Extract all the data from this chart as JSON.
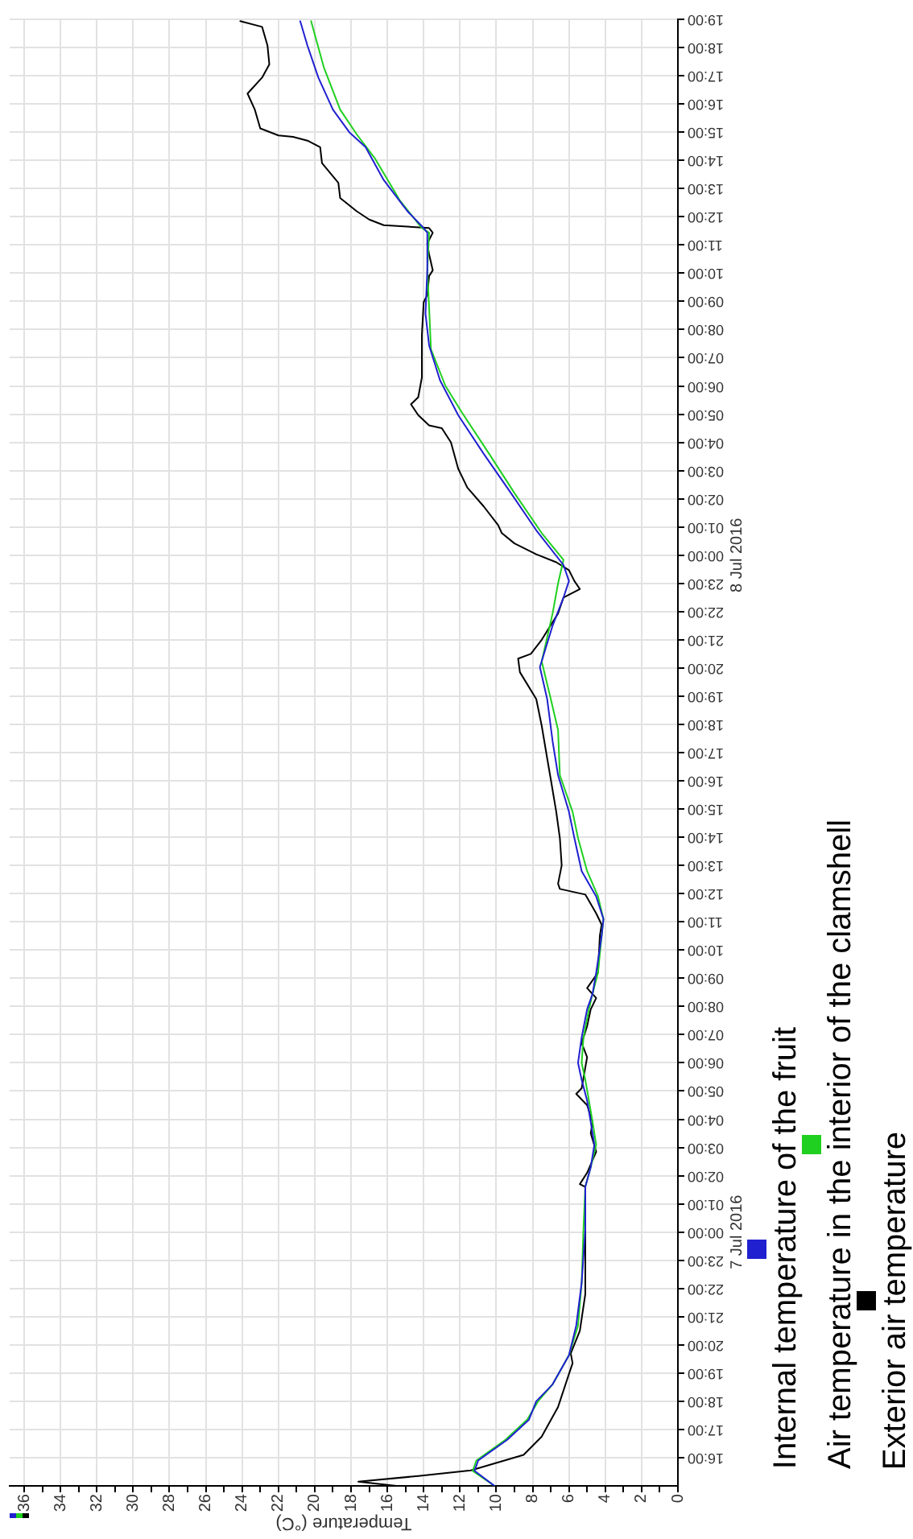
{
  "chart_data": {
    "type": "line",
    "orientation": "horizontal",
    "xlabel": "Temperature (°C)",
    "xlim": [
      36.8,
      0
    ],
    "xticks": [
      36,
      {
        "value": 35,
        "label": null
      },
      34,
      {
        "value": 33,
        "label": null
      },
      32,
      {
        "value": 31,
        "label": null
      },
      30,
      {
        "value": 29,
        "label": null
      },
      28,
      {
        "value": 27,
        "label": null
      },
      26,
      {
        "value": 25,
        "label": null
      },
      24,
      {
        "value": 23,
        "label": null
      },
      22,
      {
        "value": 21,
        "label": null
      },
      20,
      {
        "value": 19,
        "label": null
      },
      18,
      {
        "value": 17,
        "label": null
      },
      16,
      {
        "value": 15,
        "label": null
      },
      14,
      {
        "value": 13,
        "label": null
      },
      12,
      {
        "value": 11,
        "label": null
      },
      10,
      {
        "value": 9,
        "label": null
      },
      8,
      {
        "value": 7,
        "label": null
      },
      6,
      {
        "value": 5,
        "label": null
      },
      4,
      {
        "value": 3,
        "label": null
      },
      2,
      {
        "value": 1,
        "label": null
      },
      0
    ],
    "ylim": [
      "2016-07-06T15:00",
      "2016-07-08T19:00"
    ],
    "yticks": [
      {
        "value": "2016-07-06T16:00",
        "label": "16:00"
      },
      {
        "value": "2016-07-06T17:00",
        "label": "17:00"
      },
      {
        "value": "2016-07-06T18:00",
        "label": "18:00"
      },
      {
        "value": "2016-07-06T19:00",
        "label": "19:00"
      },
      {
        "value": "2016-07-06T20:00",
        "label": "20:00"
      },
      {
        "value": "2016-07-06T21:00",
        "label": "21:00"
      },
      {
        "value": "2016-07-06T22:00",
        "label": "22:00"
      },
      {
        "value": "2016-07-06T23:00",
        "label": "23:00"
      },
      {
        "value": "2016-07-07T00:00",
        "label": "00:00"
      },
      {
        "value": "2016-07-07T01:00",
        "label": "01:00"
      },
      {
        "value": "2016-07-07T02:00",
        "label": "02:00"
      },
      {
        "value": "2016-07-07T03:00",
        "label": "03:00"
      },
      {
        "value": "2016-07-07T04:00",
        "label": "04:00"
      },
      {
        "value": "2016-07-07T05:00",
        "label": "05:00"
      },
      {
        "value": "2016-07-07T06:00",
        "label": "06:00"
      },
      {
        "value": "2016-07-07T07:00",
        "label": "07:00"
      },
      {
        "value": "2016-07-07T08:00",
        "label": "08:00"
      },
      {
        "value": "2016-07-07T09:00",
        "label": "09:00"
      },
      {
        "value": "2016-07-07T10:00",
        "label": "10:00"
      },
      {
        "value": "2016-07-07T11:00",
        "label": "11:00"
      },
      {
        "value": "2016-07-07T12:00",
        "label": "12:00"
      },
      {
        "value": "2016-07-07T13:00",
        "label": "13:00"
      },
      {
        "value": "2016-07-07T14:00",
        "label": "14:00"
      },
      {
        "value": "2016-07-07T15:00",
        "label": "15:00"
      },
      {
        "value": "2016-07-07T16:00",
        "label": "16:00"
      },
      {
        "value": "2016-07-07T17:00",
        "label": "17:00"
      },
      {
        "value": "2016-07-07T18:00",
        "label": "18:00"
      },
      {
        "value": "2016-07-07T19:00",
        "label": "19:00"
      },
      {
        "value": "2016-07-07T20:00",
        "label": "20:00"
      },
      {
        "value": "2016-07-07T21:00",
        "label": "21:00"
      },
      {
        "value": "2016-07-07T22:00",
        "label": "22:00"
      },
      {
        "value": "2016-07-07T23:00",
        "label": "23:00"
      },
      {
        "value": "2016-07-08T00:00",
        "label": "00:00"
      },
      {
        "value": "2016-07-08T01:00",
        "label": "01:00"
      },
      {
        "value": "2016-07-08T02:00",
        "label": "02:00"
      },
      {
        "value": "2016-07-08T03:00",
        "label": "03:00"
      },
      {
        "value": "2016-07-08T04:00",
        "label": "04:00"
      },
      {
        "value": "2016-07-08T05:00",
        "label": "05:00"
      },
      {
        "value": "2016-07-08T06:00",
        "label": "06:00"
      },
      {
        "value": "2016-07-08T07:00",
        "label": "07:00"
      },
      {
        "value": "2016-07-08T08:00",
        "label": "08:00"
      },
      {
        "value": "2016-07-08T09:00",
        "label": "09:00"
      },
      {
        "value": "2016-07-08T10:00",
        "label": "10:00"
      },
      {
        "value": "2016-07-08T11:00",
        "label": "11:00"
      },
      {
        "value": "2016-07-08T12:00",
        "label": "12:00"
      },
      {
        "value": "2016-07-08T13:00",
        "label": "13:00"
      },
      {
        "value": "2016-07-08T14:00",
        "label": "14:00"
      },
      {
        "value": "2016-07-08T15:00",
        "label": "15:00"
      },
      {
        "value": "2016-07-08T16:00",
        "label": "16:00"
      },
      {
        "value": "2016-07-08T17:00",
        "label": "17:00"
      },
      {
        "value": "2016-07-08T18:00",
        "label": "18:00"
      },
      {
        "value": "2016-07-08T19:00",
        "label": "19:00"
      }
    ],
    "annotations": [
      "7 Jul 2016",
      "8 Jul 2016"
    ],
    "grid": true,
    "legend": "right",
    "series": [
      {
        "name": "Internal temperature of the fruit",
        "color": "#2020d0",
        "x": [
          "2016-07-06T15:00",
          "2016-07-06T15:32",
          "2016-07-06T15:54",
          "2016-07-06T16:38",
          "2016-07-06T17:21",
          "2016-07-06T18:00",
          "2016-07-06T18:36",
          "2016-07-06T19:38",
          "2016-07-06T20:41",
          "2016-07-06T22:12",
          "2016-07-07T00:06",
          "2016-07-07T01:36",
          "2016-07-07T02:18",
          "2016-07-07T03:06",
          "2016-07-07T03:54",
          "2016-07-07T04:40",
          "2016-07-07T05:24",
          "2016-07-07T06:00",
          "2016-07-07T06:54",
          "2016-07-07T07:54",
          "2016-07-07T08:27",
          "2016-07-07T09:12",
          "2016-07-07T10:30",
          "2016-07-07T11:06",
          "2016-07-07T11:54",
          "2016-07-07T12:48",
          "2016-07-07T13:58",
          "2016-07-07T14:54",
          "2016-07-07T16:12",
          "2016-07-07T17:24",
          "2016-07-07T18:54",
          "2016-07-07T20:02",
          "2016-07-07T21:30",
          "2016-07-07T22:30",
          "2016-07-07T23:05",
          "2016-07-07T23:39",
          "2016-07-08T00:53",
          "2016-07-08T02:18",
          "2016-07-08T03:36",
          "2016-07-08T04:58",
          "2016-07-08T06:12",
          "2016-07-08T07:26",
          "2016-07-08T08:34",
          "2016-07-08T10:06",
          "2016-07-08T11:26",
          "2016-07-08T11:36",
          "2016-07-08T12:12",
          "2016-07-08T13:18",
          "2016-07-08T14:28",
          "2016-07-08T15:00",
          "2016-07-08T15:48",
          "2016-07-08T16:56",
          "2016-07-08T18:04",
          "2016-07-08T18:56"
        ],
        "values": [
          10.1,
          11.2,
          11.0,
          9.4,
          8.2,
          7.8,
          6.9,
          6.0,
          5.6,
          5.3,
          5.1,
          5.1,
          4.8,
          4.6,
          4.8,
          5.0,
          5.3,
          5.5,
          5.3,
          5.0,
          4.7,
          4.5,
          4.2,
          4.1,
          4.5,
          5.3,
          5.7,
          6.0,
          6.6,
          6.9,
          7.2,
          7.6,
          6.9,
          6.3,
          6.0,
          6.3,
          7.8,
          9.3,
          10.7,
          12.1,
          13.1,
          13.7,
          13.9,
          13.8,
          13.8,
          14.0,
          14.9,
          16.2,
          17.2,
          18.1,
          19.0,
          19.8,
          20.4,
          20.8
        ]
      },
      {
        "name": "Air temperature in the interior of the clamshell",
        "color": "#20d020",
        "x": [
          "2016-07-06T15:00",
          "2016-07-06T15:32",
          "2016-07-06T15:54",
          "2016-07-06T16:38",
          "2016-07-06T17:21",
          "2016-07-06T18:00",
          "2016-07-06T18:36",
          "2016-07-06T19:38",
          "2016-07-06T20:41",
          "2016-07-06T22:12",
          "2016-07-07T00:06",
          "2016-07-07T01:36",
          "2016-07-07T02:18",
          "2016-07-07T03:06",
          "2016-07-07T03:54",
          "2016-07-07T04:40",
          "2016-07-07T05:24",
          "2016-07-07T06:00",
          "2016-07-07T06:54",
          "2016-07-07T07:54",
          "2016-07-07T08:27",
          "2016-07-07T09:12",
          "2016-07-07T10:30",
          "2016-07-07T11:06",
          "2016-07-07T11:54",
          "2016-07-07T12:48",
          "2016-07-07T13:58",
          "2016-07-07T14:54",
          "2016-07-07T16:12",
          "2016-07-07T17:48",
          "2016-07-07T18:54",
          "2016-07-07T20:14",
          "2016-07-07T21:56",
          "2016-07-07T23:00",
          "2016-07-07T23:50",
          "2016-07-08T00:47",
          "2016-07-08T02:12",
          "2016-07-08T03:36",
          "2016-07-08T05:04",
          "2016-07-08T06:00",
          "2016-07-08T07:18",
          "2016-07-08T08:46",
          "2016-07-08T10:06",
          "2016-07-08T11:26",
          "2016-07-08T11:36",
          "2016-07-08T12:34",
          "2016-07-08T14:05",
          "2016-07-08T14:56",
          "2016-07-08T15:48",
          "2016-07-08T17:18",
          "2016-07-08T18:56"
        ],
        "values": [
          10.1,
          11.3,
          11.1,
          9.5,
          8.3,
          7.7,
          6.9,
          6.0,
          5.5,
          5.3,
          5.2,
          5.1,
          4.8,
          4.5,
          4.7,
          4.9,
          5.1,
          5.3,
          5.2,
          4.9,
          4.7,
          4.4,
          4.2,
          4.1,
          4.4,
          5.0,
          5.5,
          5.8,
          6.5,
          6.6,
          7.0,
          7.5,
          6.9,
          6.6,
          6.3,
          7.5,
          9.0,
          10.4,
          11.9,
          12.8,
          13.6,
          13.7,
          13.8,
          13.7,
          14.1,
          15.3,
          16.7,
          17.7,
          18.6,
          19.5,
          20.2
        ]
      },
      {
        "name": "Exterior air temperature",
        "color": "#000000",
        "x": [
          "2016-07-06T15:00",
          "2016-07-06T15:09",
          "2016-07-06T15:21",
          "2016-07-06T15:33",
          "2016-07-06T16:06",
          "2016-07-06T16:45",
          "2016-07-06T17:48",
          "2016-07-06T18:58",
          "2016-07-06T19:21",
          "2016-07-06T19:42",
          "2016-07-06T20:30",
          "2016-07-06T21:48",
          "2016-07-06T22:36",
          "2016-07-07T00:06",
          "2016-07-07T01:36",
          "2016-07-07T01:42",
          "2016-07-07T02:06",
          "2016-07-07T02:51",
          "2016-07-07T03:30",
          "2016-07-07T03:54",
          "2016-07-07T04:30",
          "2016-07-07T04:54",
          "2016-07-07T05:06",
          "2016-07-07T06:12",
          "2016-07-07T06:42",
          "2016-07-07T07:18",
          "2016-07-07T07:54",
          "2016-07-07T08:18",
          "2016-07-07T08:39",
          "2016-07-07T09:12",
          "2016-07-07T10:30",
          "2016-07-07T10:54",
          "2016-07-07T11:18",
          "2016-07-07T11:58",
          "2016-07-07T12:10",
          "2016-07-07T12:21",
          "2016-07-07T13:00",
          "2016-07-07T13:58",
          "2016-07-07T14:54",
          "2016-07-07T16:03",
          "2016-07-07T16:48",
          "2016-07-07T17:57",
          "2016-07-07T18:54",
          "2016-07-07T19:51",
          "2016-07-07T20:20",
          "2016-07-07T20:30",
          "2016-07-07T21:00",
          "2016-07-07T21:56",
          "2016-07-07T22:30",
          "2016-07-07T22:48",
          "2016-07-07T23:05",
          "2016-07-07T23:28",
          "2016-07-07T23:45",
          "2016-07-08T00:02",
          "2016-07-08T00:25",
          "2016-07-08T00:47",
          "2016-07-08T01:04",
          "2016-07-08T01:44",
          "2016-07-08T02:24",
          "2016-07-08T03:04",
          "2016-07-08T04:00",
          "2016-07-08T04:30",
          "2016-07-08T04:36",
          "2016-07-08T04:58",
          "2016-07-08T05:21",
          "2016-07-08T05:36",
          "2016-07-08T06:18",
          "2016-07-08T07:48",
          "2016-07-08T08:58",
          "2016-07-08T09:14",
          "2016-07-08T09:54",
          "2016-07-08T10:06",
          "2016-07-08T10:40",
          "2016-07-08T11:03",
          "2016-07-08T11:26",
          "2016-07-08T11:36",
          "2016-07-08T11:42",
          "2016-07-08T11:54",
          "2016-07-08T12:12",
          "2016-07-08T12:40",
          "2016-07-08T13:12",
          "2016-07-08T13:54",
          "2016-07-08T14:28",
          "2016-07-08T14:42",
          "2016-07-08T14:50",
          "2016-07-08T14:53",
          "2016-07-08T15:08",
          "2016-07-08T15:48",
          "2016-07-08T16:22",
          "2016-07-08T16:56",
          "2016-07-08T17:24",
          "2016-07-08T18:04",
          "2016-07-08T18:44",
          "2016-07-08T18:56"
        ],
        "values": [
          15.5,
          17.6,
          14.3,
          11.4,
          8.5,
          7.5,
          6.6,
          6.0,
          5.8,
          5.9,
          5.4,
          5.1,
          5.1,
          5.1,
          5.1,
          5.4,
          5.0,
          4.5,
          4.8,
          4.7,
          5.0,
          5.6,
          5.3,
          5.0,
          5.3,
          5.0,
          4.8,
          4.5,
          5.0,
          4.4,
          4.3,
          4.2,
          4.5,
          5.1,
          6.5,
          6.6,
          6.4,
          6.5,
          6.7,
          7.0,
          7.2,
          7.5,
          7.8,
          8.7,
          8.8,
          8.1,
          7.5,
          6.6,
          6.3,
          5.4,
          5.7,
          6.0,
          6.7,
          7.8,
          9.0,
          9.7,
          9.9,
          10.7,
          11.6,
          12.1,
          12.5,
          13.0,
          13.7,
          14.3,
          14.7,
          14.3,
          14.1,
          14.1,
          14.0,
          13.8,
          13.7,
          13.5,
          13.7,
          13.8,
          13.5,
          13.7,
          16.2,
          17.0,
          17.7,
          18.6,
          18.7,
          19.6,
          19.7,
          20.4,
          21.2,
          22.0,
          23.0,
          23.3,
          23.7,
          22.9,
          22.5,
          22.6,
          22.9,
          24.1
        ]
      }
    ]
  }
}
